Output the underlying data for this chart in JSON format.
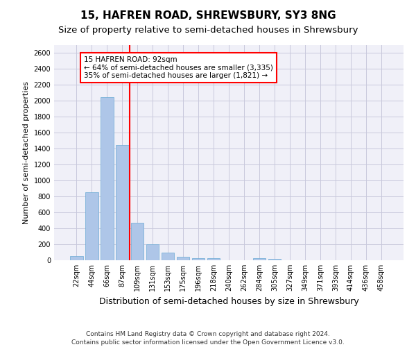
{
  "title1": "15, HAFREN ROAD, SHREWSBURY, SY3 8NG",
  "title2": "Size of property relative to semi-detached houses in Shrewsbury",
  "xlabel": "Distribution of semi-detached houses by size in Shrewsbury",
  "ylabel": "Number of semi-detached properties",
  "bar_labels": [
    "22sqm",
    "44sqm",
    "66sqm",
    "87sqm",
    "109sqm",
    "131sqm",
    "153sqm",
    "175sqm",
    "196sqm",
    "218sqm",
    "240sqm",
    "262sqm",
    "284sqm",
    "305sqm",
    "327sqm",
    "349sqm",
    "371sqm",
    "393sqm",
    "414sqm",
    "436sqm",
    "458sqm"
  ],
  "bar_values": [
    50,
    850,
    2050,
    1450,
    470,
    200,
    95,
    45,
    30,
    25,
    0,
    0,
    25,
    20,
    0,
    0,
    0,
    0,
    0,
    0,
    0
  ],
  "bar_color": "#aec6e8",
  "bar_edgecolor": "#6aaad4",
  "ylim": [
    0,
    2700
  ],
  "yticks": [
    0,
    200,
    400,
    600,
    800,
    1000,
    1200,
    1400,
    1600,
    1800,
    2000,
    2200,
    2400,
    2600
  ],
  "vline_color": "red",
  "annotation_title": "15 HAFREN ROAD: 92sqm",
  "annotation_line1": "← 64% of semi-detached houses are smaller (3,335)",
  "annotation_line2": "35% of semi-detached houses are larger (1,821) →",
  "annotation_box_color": "white",
  "annotation_box_edgecolor": "red",
  "footer1": "Contains HM Land Registry data © Crown copyright and database right 2024.",
  "footer2": "Contains public sector information licensed under the Open Government Licence v3.0.",
  "background_color": "#f0f0f8",
  "grid_color": "#c8c8dc",
  "title1_fontsize": 11,
  "title2_fontsize": 9.5,
  "xlabel_fontsize": 9,
  "ylabel_fontsize": 8,
  "tick_fontsize": 7,
  "annotation_fontsize": 7.5,
  "footer_fontsize": 6.5
}
